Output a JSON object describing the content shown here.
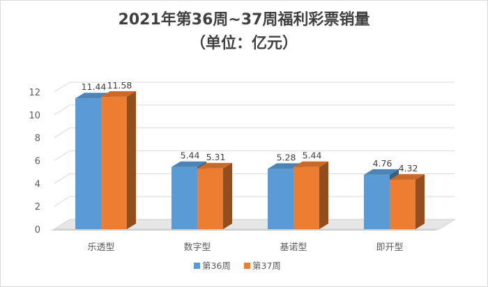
{
  "chart_data": {
    "type": "bar",
    "title": "2021年第36周~37周福利彩票销量",
    "subtitle": "（单位：亿元）",
    "categories": [
      "乐透型",
      "数字型",
      "基诺型",
      "即开型"
    ],
    "series": [
      {
        "name": "第36周",
        "values": [
          11.44,
          5.44,
          5.28,
          4.76
        ],
        "color": "#5b9bd5"
      },
      {
        "name": "第37周",
        "values": [
          11.58,
          5.31,
          5.44,
          4.32
        ],
        "color": "#ed7d31"
      }
    ],
    "data_labels": [
      [
        "11.44",
        "5.44",
        "5.28",
        "4.76"
      ],
      [
        "11.58",
        "5.31",
        "5.44",
        "4.32"
      ]
    ],
    "yticks": [
      "0",
      "2",
      "4",
      "6",
      "8",
      "10",
      "12"
    ],
    "ylim": [
      0,
      12
    ],
    "grid": true,
    "legend": "bottom",
    "style": "3d-clustered-column"
  }
}
